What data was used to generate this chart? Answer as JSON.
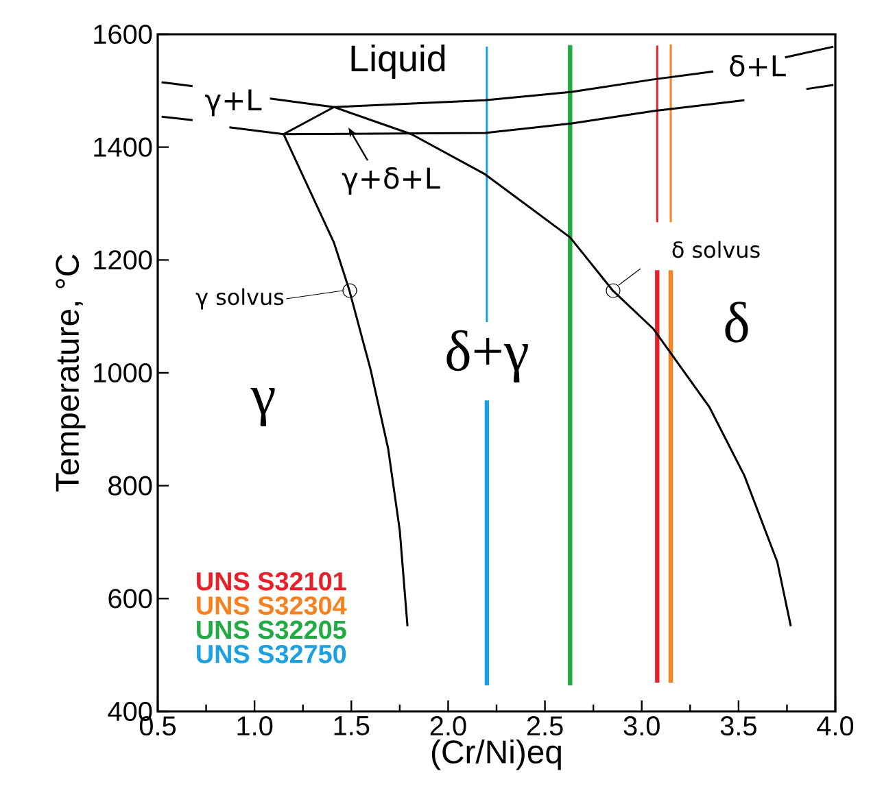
{
  "chart_data": {
    "type": "line",
    "xlabel": "(Cr/Ni)eq",
    "ylabel": "Temperature, °C",
    "xlim": [
      0.5,
      4.0
    ],
    "ylim": [
      400,
      1600
    ],
    "xticks": [
      0.5,
      {
        "value": 1.0,
        "label": "1.0"
      },
      1.5,
      {
        "value": 2.0,
        "label": "2.0"
      },
      2.5,
      {
        "value": 3.0,
        "label": "3.0"
      },
      3.5,
      {
        "value": 4.0,
        "label": "4.0"
      }
    ],
    "yticks": [
      400,
      600,
      800,
      1000,
      1200,
      1400,
      1600
    ],
    "legend": "bottom left",
    "series": [
      {
        "name": "UNS S32101",
        "color": "#e8202a",
        "x": [
          3.08,
          3.08
        ],
        "values": [
          451,
          1182
        ]
      },
      {
        "name": "UNS S32304",
        "color": "#f58220",
        "x": [
          3.15,
          3.15
        ],
        "values": [
          451,
          1182
        ]
      },
      {
        "name": "UNS S32205",
        "color": "#22aa44",
        "x": [
          2.63,
          2.63
        ],
        "values": [
          446,
          1581
        ]
      },
      {
        "name": "UNS S32750",
        "color": "#1ca0e0",
        "x": [
          2.2,
          2.2
        ],
        "values": [
          446,
          951
        ]
      },
      {
        "color": "#e8202a",
        "x": [
          3.08,
          3.08
        ],
        "values": [
          1267,
          1580
        ]
      },
      {
        "color": "#f58220",
        "x": [
          3.15,
          3.15
        ],
        "values": [
          1267,
          1582
        ]
      },
      {
        "color": "#1ca0e0",
        "x": [
          2.2,
          2.2
        ],
        "values": [
          1090,
          1578
        ]
      },
      {
        "color": "#000000",
        "x": [
          0.52,
          0.68,
          0.9,
          1.08,
          1.41,
          2.19,
          2.64,
          3.06,
          3.37,
          3.5,
          3.74,
          3.99
        ],
        "values": [
          1515,
          1508,
          null,
          1486,
          1471,
          1483,
          1498,
          1520,
          1534,
          null,
          1559,
          1578
        ]
      },
      {
        "color": "#000000",
        "x": [
          0.52,
          0.68,
          0.8,
          0.87,
          1.15,
          2.19,
          2.64,
          3.06,
          3.53,
          3.7,
          3.85,
          3.99
        ],
        "values": [
          1454,
          1448,
          null,
          1435,
          1423,
          1425,
          1442,
          1464,
          1483,
          null,
          1503,
          1510
        ]
      },
      {
        "color": "#000000",
        "x": [
          1.15,
          1.41
        ],
        "values": [
          1423,
          1471
        ]
      },
      {
        "color": "#000000",
        "x": [
          1.41,
          1.81,
          2.19,
          2.63,
          2.85,
          3.06,
          3.35,
          3.53,
          3.7,
          3.77
        ],
        "values": [
          1471,
          1423,
          1352,
          1240,
          1146,
          1078,
          939,
          818,
          665,
          551
        ]
      },
      {
        "color": "#000000",
        "x": [
          1.15,
          1.41,
          1.49,
          1.6,
          1.69,
          1.75,
          1.79
        ],
        "values": [
          1423,
          1231,
          1146,
          1005,
          866,
          721,
          551
        ]
      }
    ],
    "annotations": [
      "Liquid",
      "γ+L",
      "δ+L",
      "γ+δ+L",
      "γ solvus",
      "δ solvus",
      "δ+γ",
      "δ",
      "γ"
    ]
  }
}
